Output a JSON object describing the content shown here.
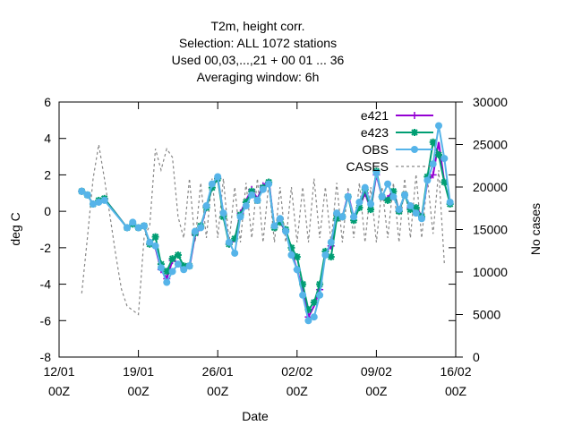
{
  "chart_data": {
    "type": "line",
    "title_lines": [
      "T2m, height corr.",
      "Selection: ALL   1072 stations",
      "Used  00,03,...,21  + 00 01 ... 36",
      "Averaging window:  6h"
    ],
    "xlabel": "Date",
    "ylabel": "deg C",
    "y2label": "No cases",
    "xlim": [
      0,
      35
    ],
    "ylim": [
      -8,
      6
    ],
    "y2lim": [
      0,
      30000
    ],
    "x_ticks": [
      {
        "x": 0,
        "line1": "12/01",
        "line2": "00Z"
      },
      {
        "x": 7,
        "line1": "19/01",
        "line2": "00Z"
      },
      {
        "x": 14,
        "line1": "26/01",
        "line2": "00Z"
      },
      {
        "x": 21,
        "line1": "02/02",
        "line2": "00Z"
      },
      {
        "x": 28,
        "line1": "09/02",
        "line2": "00Z"
      },
      {
        "x": 35,
        "line1": "16/02",
        "line2": "00Z"
      }
    ],
    "y_ticks": [
      -8,
      -6,
      -4,
      -2,
      0,
      2,
      4,
      6
    ],
    "y2_ticks": [
      0,
      5000,
      10000,
      15000,
      20000,
      25000,
      30000
    ],
    "legend_position": "top-right",
    "series": [
      {
        "name": "e421",
        "axis": "y",
        "color": "#9400d3",
        "marker": "plus",
        "x": [
          2.0,
          2.5,
          3.0,
          3.5,
          4.0,
          6.0,
          6.5,
          7.0,
          7.5,
          8.0,
          8.5,
          9.0,
          9.5,
          10.0,
          10.5,
          11.0,
          11.5,
          12.0,
          12.5,
          13.0,
          13.5,
          14.0,
          14.5,
          15.0,
          15.5,
          16.0,
          16.5,
          17.0,
          17.5,
          18.0,
          18.5,
          19.0,
          19.5,
          20.0,
          20.5,
          21.0,
          21.5,
          22.0,
          22.5,
          23.0,
          23.5,
          24.0,
          24.5,
          25.0,
          25.5,
          26.0,
          26.5,
          27.0,
          27.5,
          28.0,
          28.5,
          29.0,
          29.5,
          30.0,
          30.5,
          31.0,
          31.5,
          32.0,
          32.5,
          33.0,
          33.5,
          34.0
        ],
        "y": [
          1.1,
          0.9,
          0.4,
          0.6,
          0.7,
          -0.9,
          -0.7,
          -0.9,
          -0.8,
          -1.8,
          -2.0,
          -3.2,
          -3.7,
          -2.7,
          -2.8,
          -3.1,
          -3.1,
          -1.3,
          -0.9,
          0.2,
          1.3,
          1.8,
          -0.1,
          -1.8,
          -1.6,
          -0.1,
          0.6,
          1.2,
          0.7,
          1.4,
          1.7,
          -0.9,
          -0.6,
          -1.1,
          -2.2,
          -3.2,
          -4.3,
          -5.8,
          -5.2,
          -4.3,
          -2.3,
          -1.9,
          -0.3,
          -0.3,
          0.9,
          -0.3,
          0.2,
          1.0,
          0.1,
          2.0,
          0.8,
          0.7,
          1.2,
          0.0,
          0.9,
          0.2,
          0.3,
          -0.3,
          1.6,
          2.0,
          3.8,
          1.6
        ],
        "markers": [
          1,
          0,
          1,
          0,
          1,
          1,
          0,
          1,
          0,
          1,
          0,
          1,
          1,
          1,
          0,
          1,
          0,
          1,
          0,
          1,
          0,
          1,
          0,
          1,
          0,
          1,
          0,
          1,
          0,
          1,
          0,
          1,
          0,
          1,
          0,
          1,
          0,
          1,
          0,
          1,
          0,
          1,
          0,
          1,
          0,
          1,
          0,
          1,
          0,
          1,
          0,
          1,
          0,
          1,
          0,
          1,
          0,
          1,
          0,
          1,
          0,
          1
        ]
      },
      {
        "name": "e423",
        "axis": "y",
        "color": "#009e73",
        "marker": "star",
        "x": [
          2.0,
          2.5,
          3.0,
          3.5,
          4.0,
          6.0,
          6.5,
          7.0,
          7.5,
          8.0,
          8.5,
          9.0,
          9.5,
          10.0,
          10.5,
          11.0,
          11.5,
          12.0,
          12.5,
          13.0,
          13.5,
          14.0,
          14.5,
          15.0,
          15.5,
          16.0,
          16.5,
          17.0,
          17.5,
          18.0,
          18.5,
          19.0,
          19.5,
          20.0,
          20.5,
          21.0,
          21.5,
          22.0,
          22.5,
          23.0,
          23.5,
          24.0,
          24.5,
          25.0,
          25.5,
          26.0,
          26.5,
          27.0,
          27.5,
          28.0,
          28.5,
          29.0,
          29.5,
          30.0,
          30.5,
          31.0,
          31.5,
          32.0,
          32.5,
          33.0,
          33.5,
          34.0,
          34.5
        ],
        "y": [
          1.1,
          0.9,
          0.4,
          0.6,
          0.7,
          -0.9,
          -0.7,
          -0.9,
          -0.8,
          -1.8,
          -1.4,
          -2.9,
          -3.3,
          -2.6,
          -2.4,
          -3.0,
          -3.0,
          -1.2,
          -0.8,
          0.2,
          1.3,
          1.8,
          -0.3,
          -1.8,
          -1.5,
          -0.2,
          0.5,
          1.1,
          0.6,
          1.3,
          1.6,
          -0.9,
          -0.6,
          -1.0,
          -2.0,
          -2.5,
          -4.0,
          -5.4,
          -5.0,
          -4.0,
          -2.2,
          -2.5,
          -0.4,
          -0.3,
          0.8,
          -0.5,
          0.2,
          1.2,
          0.1,
          2.2,
          0.8,
          0.6,
          1.1,
          0.0,
          0.9,
          0.1,
          0.2,
          -0.3,
          1.9,
          3.8,
          3.1,
          1.6,
          0.4
        ],
        "markers": [
          1,
          1,
          1,
          1,
          1,
          1,
          1,
          1,
          1,
          1,
          1,
          1,
          1,
          1,
          1,
          1,
          1,
          1,
          1,
          1,
          1,
          1,
          1,
          1,
          1,
          1,
          1,
          1,
          1,
          1,
          1,
          1,
          1,
          1,
          1,
          1,
          1,
          1,
          1,
          1,
          1,
          1,
          1,
          1,
          1,
          1,
          1,
          1,
          1,
          1,
          1,
          1,
          1,
          1,
          1,
          1,
          1,
          1,
          1,
          1,
          1,
          1,
          1
        ]
      },
      {
        "name": "OBS",
        "axis": "y",
        "color": "#56b4e9",
        "marker": "circle",
        "x": [
          2.0,
          2.5,
          3.0,
          3.5,
          4.0,
          6.0,
          6.5,
          7.0,
          7.5,
          8.0,
          8.5,
          9.0,
          9.5,
          10.0,
          10.5,
          11.0,
          11.5,
          12.0,
          12.5,
          13.0,
          13.5,
          14.0,
          14.5,
          15.0,
          15.5,
          16.0,
          16.5,
          17.0,
          17.5,
          18.0,
          18.5,
          19.0,
          19.5,
          20.0,
          20.5,
          21.0,
          21.5,
          22.0,
          22.5,
          23.0,
          23.5,
          24.0,
          24.5,
          25.0,
          25.5,
          26.0,
          26.5,
          27.0,
          27.5,
          28.0,
          28.5,
          29.0,
          29.5,
          30.0,
          30.5,
          31.0,
          31.5,
          32.0,
          32.5,
          33.0,
          33.5,
          34.0,
          34.5
        ],
        "y": [
          1.1,
          0.9,
          0.4,
          0.5,
          0.6,
          -0.9,
          -0.6,
          -0.9,
          -0.8,
          -1.7,
          -1.9,
          -3.1,
          -3.9,
          -3.3,
          -2.9,
          -3.2,
          -3.0,
          -1.1,
          -0.9,
          0.3,
          1.5,
          1.9,
          -0.1,
          -1.7,
          -2.3,
          -0.3,
          0.3,
          0.9,
          0.6,
          1.2,
          1.5,
          -0.8,
          -0.4,
          -1.1,
          -2.4,
          -3.2,
          -4.6,
          -6.0,
          -5.8,
          -4.6,
          -2.4,
          -1.7,
          -0.1,
          -0.3,
          0.8,
          -0.3,
          0.5,
          1.3,
          0.4,
          2.1,
          0.8,
          1.5,
          0.8,
          0.1,
          0.9,
          0.3,
          -0.1,
          -0.4,
          1.7,
          2.6,
          4.7,
          2.9,
          0.5
        ],
        "markers": [
          1,
          1,
          1,
          1,
          1,
          1,
          1,
          1,
          1,
          1,
          1,
          1,
          1,
          1,
          1,
          1,
          1,
          1,
          1,
          1,
          1,
          1,
          1,
          1,
          1,
          1,
          1,
          1,
          1,
          1,
          1,
          1,
          1,
          1,
          1,
          1,
          1,
          1,
          1,
          1,
          1,
          1,
          1,
          1,
          1,
          1,
          1,
          1,
          1,
          1,
          1,
          1,
          1,
          1,
          1,
          1,
          1,
          1,
          1,
          1,
          1,
          1,
          1
        ]
      },
      {
        "name": "CASES",
        "axis": "y2",
        "color": "#888888",
        "marker": "none",
        "dashed": true,
        "x": [
          2.0,
          2.5,
          3.0,
          3.5,
          4.0,
          4.5,
          5.0,
          5.5,
          6.0,
          6.5,
          7.0,
          7.5,
          8.0,
          8.5,
          9.0,
          9.5,
          10.0,
          10.5,
          11.0,
          11.5,
          12.0,
          12.5,
          13.0,
          13.5,
          14.0,
          14.5,
          15.0,
          15.5,
          16.0,
          16.5,
          17.0,
          17.5,
          18.0,
          18.5,
          19.0,
          19.5,
          20.0,
          20.5,
          21.0,
          21.5,
          22.0,
          22.5,
          23.0,
          23.5,
          24.0,
          24.5,
          25.0,
          25.5,
          26.0,
          26.5,
          27.0,
          27.5,
          28.0,
          28.5,
          29.0,
          29.5,
          30.0,
          30.5,
          31.0,
          31.5,
          32.0,
          32.5,
          33.0,
          33.5,
          34.0
        ],
        "y": [
          7500,
          14000,
          21000,
          25000,
          21000,
          16500,
          12000,
          8000,
          6000,
          5500,
          5000,
          14000,
          15500,
          24500,
          22000,
          24500,
          23500,
          16500,
          14000,
          21000,
          13500,
          20500,
          14000,
          21000,
          14000,
          21000,
          13500,
          20000,
          13500,
          20500,
          14000,
          21000,
          13500,
          20500,
          13500,
          20000,
          13500,
          20000,
          13500,
          20000,
          13500,
          21000,
          14000,
          20000,
          13500,
          20500,
          13500,
          20000,
          14000,
          20500,
          13500,
          20000,
          13500,
          20000,
          14000,
          20500,
          13500,
          21000,
          14000,
          21500,
          14000,
          21000,
          14500,
          22000,
          11000
        ]
      }
    ]
  }
}
